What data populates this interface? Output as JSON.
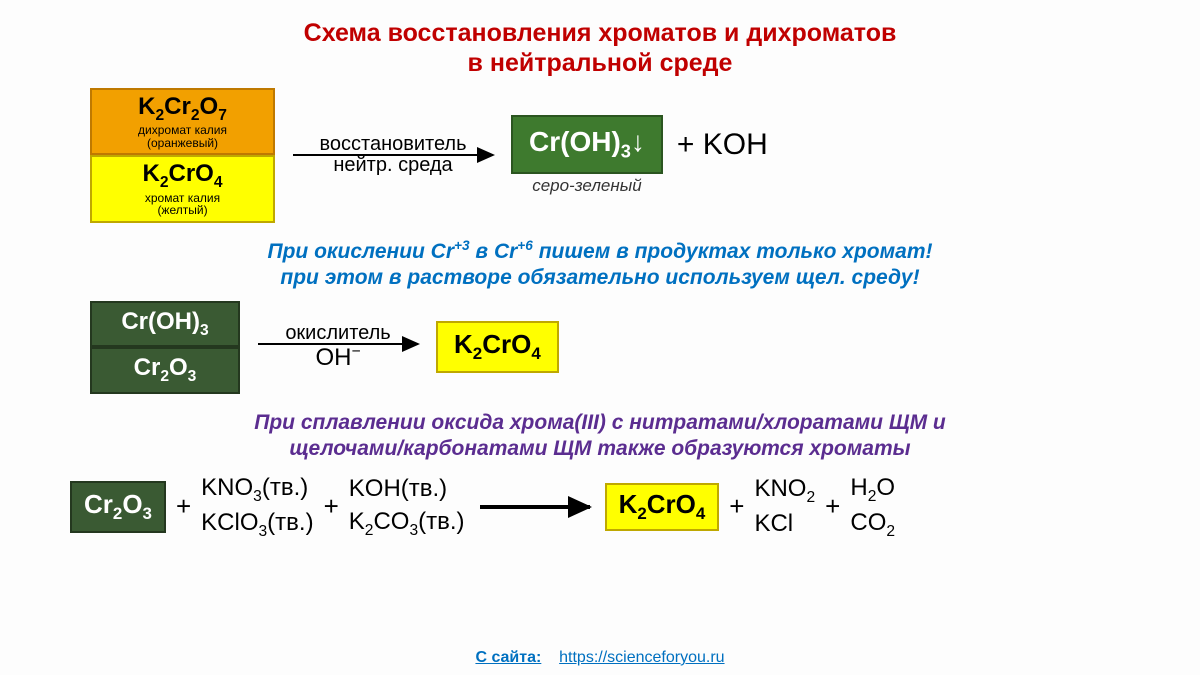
{
  "title_line1": "Схема восстановления хроматов и дихроматов",
  "title_line2": "в нейтральной среде",
  "colors": {
    "title": "#c00000",
    "orange_bg": "#f2a000",
    "orange_border": "#bf7900",
    "yellow_bg": "#ffff00",
    "yellow_border": "#bfa800",
    "green_bg": "#3e7a2e",
    "green_border": "#2b5520",
    "green_text": "#ffffff",
    "darkgreen_bg": "#3a5a33",
    "darkgreen_border": "#24381f",
    "note_blue": "#0070c0",
    "note_purple": "#5b2d90",
    "link": "#0070c0"
  },
  "block1": {
    "dichromate": {
      "formula": "K<sub>2</sub>Cr<sub>2</sub>O<sub>7</sub>",
      "caption1": "дихромат калия",
      "caption2": "(оранжевый)"
    },
    "chromate": {
      "formula": "K<sub>2</sub>CrO<sub>4</sub>",
      "caption1": "хромат калия",
      "caption2": "(желтый)"
    },
    "arrow_top": "восстановитель",
    "arrow_bottom": "нейтр. среда",
    "product_box": "Cr(OH)<sub>3</sub>↓",
    "product_caption": "серо-зеленый",
    "plus_text": "+ KOH"
  },
  "note1_line1": "При окислении Cr<sup>+3</sup> в Cr<sup>+6</sup> пишем в продуктах только хромат!",
  "note1_line2": "при этом в растворе обязательно используем щел. среду!",
  "block2": {
    "croh3": "Cr(OH)<sub>3</sub>",
    "cr2o3": "Cr<sub>2</sub>O<sub>3</sub>",
    "arrow_top": "окислитель",
    "arrow_bottom": "OH<sup>−</sup>",
    "product": "K<sub>2</sub>CrO<sub>4</sub>"
  },
  "note2_line1": "При сплавлении оксида хрома(III) с нитратами/хлоратами ЩМ и",
  "note2_line2": "щелочами/карбонатами ЩМ также образуются хроматы",
  "block3": {
    "cr2o3": "Cr<sub>2</sub>O<sub>3</sub>",
    "reagent1_a": "KNO<sub>3</sub>(тв.)",
    "reagent1_b": "KClO<sub>3</sub>(тв.)",
    "reagent2_a": "KOH(тв.)",
    "reagent2_b": "K<sub>2</sub>CO<sub>3</sub>(тв.)",
    "product_box": "K<sub>2</sub>CrO<sub>4</sub>",
    "prod_a": "KNO<sub>2</sub>",
    "prod_b": "KCl",
    "prod_c": "H<sub>2</sub>O",
    "prod_d": "CO<sub>2</sub>"
  },
  "footer_label": "С  сайта:",
  "footer_link": "https://scienceforyou.ru"
}
